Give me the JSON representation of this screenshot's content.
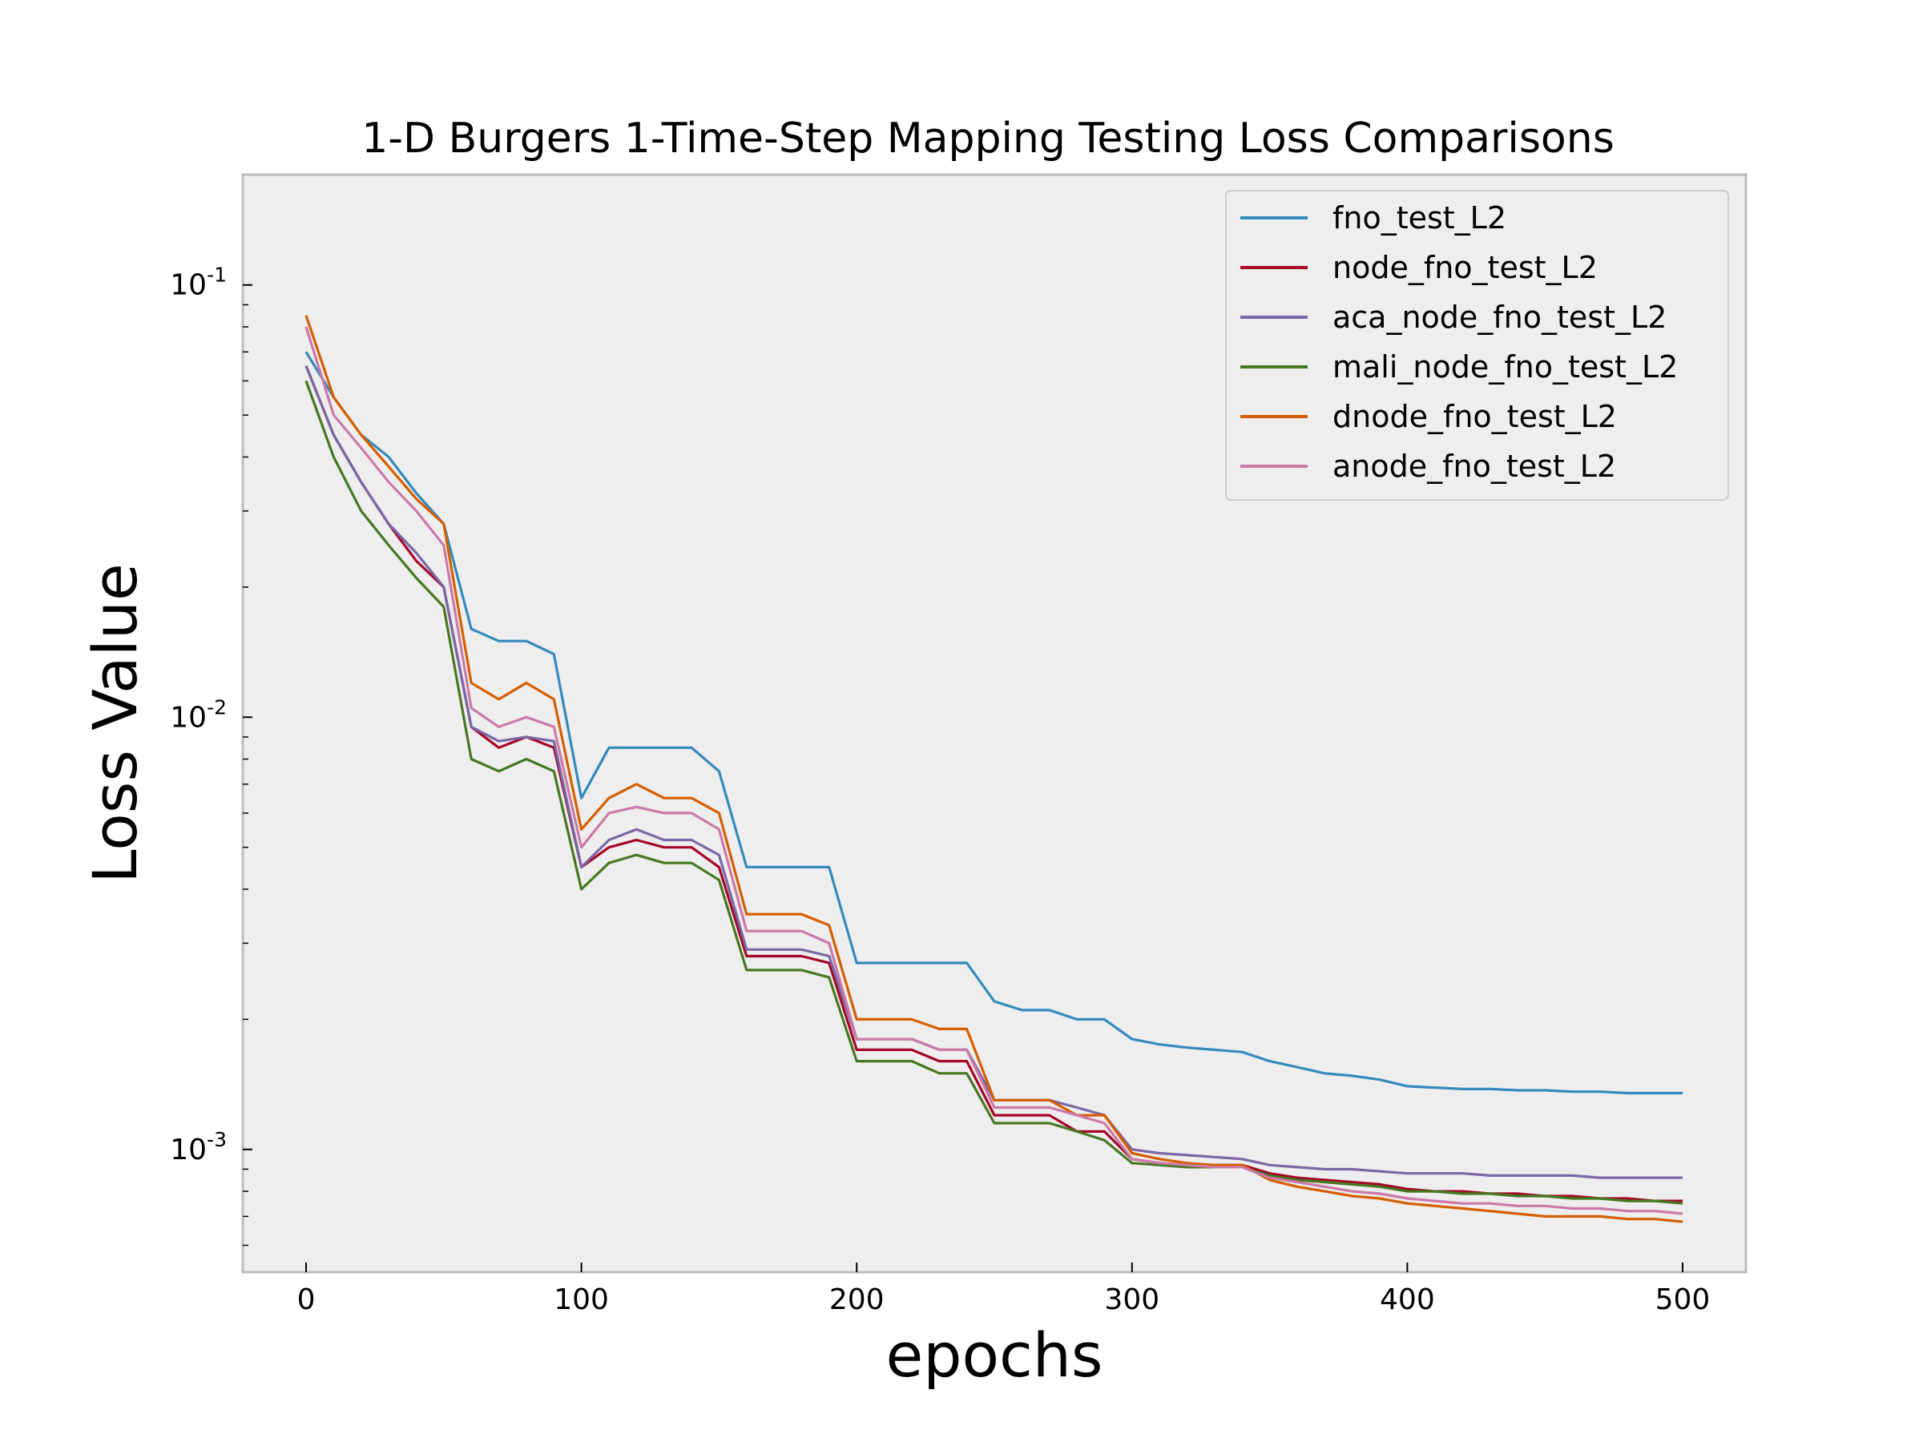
{
  "chart_data": {
    "type": "line",
    "title": "1-D Burgers 1-Time-Step Mapping Testing Loss Comparisons",
    "xlabel": "epochs",
    "ylabel": "Loss Value",
    "xlim": [
      -23,
      523
    ],
    "ylim": [
      0.00052,
      0.18
    ],
    "yscale": "log",
    "grid": false,
    "legend_position": "top-right",
    "background": "#eeeeee",
    "x_ticks": [
      {
        "value": 0,
        "label": "0"
      },
      {
        "value": 100,
        "label": "100"
      },
      {
        "value": 200,
        "label": "200"
      },
      {
        "value": 300,
        "label": "300"
      },
      {
        "value": 400,
        "label": "400"
      },
      {
        "value": 500,
        "label": "500"
      }
    ],
    "y_ticks": [
      {
        "value": 0.1,
        "base": "10",
        "exp": "-1"
      },
      {
        "value": 0.01,
        "base": "10",
        "exp": "-2"
      },
      {
        "value": 0.001,
        "base": "10",
        "exp": "-3"
      }
    ],
    "x": [
      0,
      10,
      20,
      30,
      40,
      50,
      60,
      70,
      80,
      90,
      100,
      110,
      120,
      130,
      140,
      150,
      160,
      170,
      180,
      190,
      200,
      210,
      220,
      230,
      240,
      250,
      260,
      270,
      280,
      290,
      300,
      310,
      320,
      330,
      340,
      350,
      360,
      370,
      380,
      390,
      400,
      410,
      420,
      430,
      440,
      450,
      460,
      470,
      480,
      490,
      500
    ],
    "series": [
      {
        "name": "fno_test_L2",
        "color": "#348abd",
        "values": [
          0.07,
          0.055,
          0.045,
          0.04,
          0.033,
          0.028,
          0.016,
          0.015,
          0.015,
          0.014,
          0.0065,
          0.0085,
          0.0085,
          0.0085,
          0.0085,
          0.0075,
          0.0045,
          0.0045,
          0.0045,
          0.0045,
          0.0027,
          0.0027,
          0.0027,
          0.0027,
          0.0027,
          0.0022,
          0.0021,
          0.0021,
          0.002,
          0.002,
          0.0018,
          0.00175,
          0.00172,
          0.0017,
          0.00168,
          0.0016,
          0.00155,
          0.0015,
          0.00148,
          0.00145,
          0.0014,
          0.00139,
          0.00138,
          0.00138,
          0.00137,
          0.00137,
          0.00136,
          0.00136,
          0.00135,
          0.00135,
          0.00135
        ]
      },
      {
        "name": "node_fno_test_L2",
        "color": "#a60628",
        "values": [
          0.065,
          0.045,
          0.035,
          0.028,
          0.023,
          0.02,
          0.0095,
          0.0085,
          0.009,
          0.0085,
          0.0045,
          0.005,
          0.0052,
          0.005,
          0.005,
          0.0045,
          0.0028,
          0.0028,
          0.0028,
          0.0027,
          0.0017,
          0.0017,
          0.0017,
          0.0016,
          0.0016,
          0.0012,
          0.0012,
          0.0012,
          0.0011,
          0.0011,
          0.00095,
          0.00093,
          0.00092,
          0.00092,
          0.00092,
          0.00088,
          0.00086,
          0.00085,
          0.00084,
          0.00083,
          0.00081,
          0.0008,
          0.0008,
          0.00079,
          0.00079,
          0.00078,
          0.00078,
          0.00077,
          0.00077,
          0.00076,
          0.00076
        ]
      },
      {
        "name": "aca_node_fno_test_L2",
        "color": "#7a68a6",
        "values": [
          0.065,
          0.045,
          0.035,
          0.028,
          0.024,
          0.02,
          0.0095,
          0.0088,
          0.009,
          0.0088,
          0.0045,
          0.0052,
          0.0055,
          0.0052,
          0.0052,
          0.0048,
          0.0029,
          0.0029,
          0.0029,
          0.0028,
          0.0018,
          0.0018,
          0.0018,
          0.0017,
          0.0017,
          0.0013,
          0.0013,
          0.0013,
          0.00125,
          0.0012,
          0.001,
          0.00098,
          0.00097,
          0.00096,
          0.00095,
          0.00092,
          0.00091,
          0.0009,
          0.0009,
          0.00089,
          0.00088,
          0.00088,
          0.00088,
          0.00087,
          0.00087,
          0.00087,
          0.00087,
          0.00086,
          0.00086,
          0.00086,
          0.00086
        ]
      },
      {
        "name": "mali_node_fno_test_L2",
        "color": "#467821",
        "values": [
          0.06,
          0.04,
          0.03,
          0.025,
          0.021,
          0.018,
          0.008,
          0.0075,
          0.008,
          0.0075,
          0.004,
          0.0046,
          0.0048,
          0.0046,
          0.0046,
          0.0042,
          0.0026,
          0.0026,
          0.0026,
          0.0025,
          0.0016,
          0.0016,
          0.0016,
          0.0015,
          0.0015,
          0.00115,
          0.00115,
          0.00115,
          0.0011,
          0.00105,
          0.00093,
          0.00092,
          0.00091,
          0.00091,
          0.00091,
          0.00087,
          0.00085,
          0.00084,
          0.00083,
          0.00082,
          0.0008,
          0.0008,
          0.00079,
          0.00079,
          0.00078,
          0.00078,
          0.00077,
          0.00077,
          0.00076,
          0.00076,
          0.00075
        ]
      },
      {
        "name": "dnode_fno_test_L2",
        "color": "#d55e00",
        "values": [
          0.085,
          0.055,
          0.045,
          0.038,
          0.032,
          0.028,
          0.012,
          0.011,
          0.012,
          0.011,
          0.0055,
          0.0065,
          0.007,
          0.0065,
          0.0065,
          0.006,
          0.0035,
          0.0035,
          0.0035,
          0.0033,
          0.002,
          0.002,
          0.002,
          0.0019,
          0.0019,
          0.0013,
          0.0013,
          0.0013,
          0.0012,
          0.0012,
          0.00098,
          0.00095,
          0.00093,
          0.00092,
          0.00092,
          0.00085,
          0.00082,
          0.0008,
          0.00078,
          0.00077,
          0.00075,
          0.00074,
          0.00073,
          0.00072,
          0.00071,
          0.0007,
          0.0007,
          0.0007,
          0.00069,
          0.00069,
          0.00068
        ]
      },
      {
        "name": "anode_fno_test_L2",
        "color": "#cc79a7",
        "values": [
          0.08,
          0.05,
          0.042,
          0.035,
          0.03,
          0.025,
          0.0105,
          0.0095,
          0.01,
          0.0095,
          0.005,
          0.006,
          0.0062,
          0.006,
          0.006,
          0.0055,
          0.0032,
          0.0032,
          0.0032,
          0.003,
          0.0018,
          0.0018,
          0.0018,
          0.0017,
          0.0017,
          0.00125,
          0.00125,
          0.00125,
          0.0012,
          0.00115,
          0.00095,
          0.00093,
          0.00092,
          0.00091,
          0.00091,
          0.00086,
          0.00084,
          0.00082,
          0.0008,
          0.00079,
          0.00077,
          0.00076,
          0.00075,
          0.00075,
          0.00074,
          0.00074,
          0.00073,
          0.00073,
          0.00072,
          0.00072,
          0.00071
        ]
      }
    ]
  }
}
